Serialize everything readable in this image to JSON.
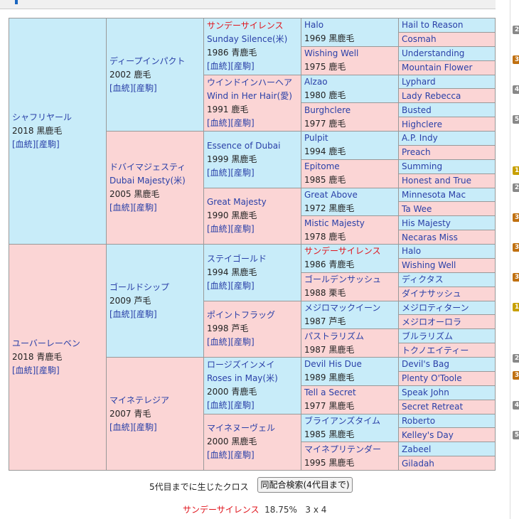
{
  "links": {
    "bloodline": "[血統]",
    "progeny": "[産駒]"
  },
  "horse": {
    "name": "シャフリヤール",
    "info": "2018 黒鹿毛"
  },
  "g1": [
    {
      "name": "シャフリヤール",
      "info": "2018 黒鹿毛"
    },
    {
      "name": "ユーバーレーベン",
      "info": "2018 青鹿毛"
    }
  ],
  "g2": [
    {
      "name": "ディープインパクト",
      "info": "2002 鹿毛"
    },
    {
      "name": "ドバイマジェスティ",
      "name2": "Dubai Majesty(米)",
      "info": "2005 黒鹿毛"
    },
    {
      "name": "ゴールドシップ",
      "info": "2009 芦毛"
    },
    {
      "name": "マイネテレジア",
      "info": "2007 青毛"
    }
  ],
  "g3": [
    {
      "name": "サンデーサイレンス",
      "name2": "Sunday Silence(米)",
      "info": "1986 青鹿毛"
    },
    {
      "name": "ウインドインハーヘア",
      "name2": "Wind in Her Hair(愛)",
      "info": "1991 鹿毛"
    },
    {
      "name": "Essence of Dubai",
      "info": "1999 黒鹿毛"
    },
    {
      "name": "Great Majesty",
      "info": "1990 黒鹿毛"
    },
    {
      "name": "ステイゴールド",
      "info": "1994 黒鹿毛"
    },
    {
      "name": "ポイントフラッグ",
      "info": "1998 芦毛"
    },
    {
      "name": "ロージズインメイ",
      "name2": "Roses in May(米)",
      "info": "2000 青鹿毛"
    },
    {
      "name": "マイネヌーヴェル",
      "info": "2000 黒鹿毛"
    }
  ],
  "g4": [
    {
      "name": "Halo",
      "info": "1969 黒鹿毛"
    },
    {
      "name": "Wishing Well",
      "info": "1975 鹿毛"
    },
    {
      "name": "Alzao",
      "info": "1980 鹿毛"
    },
    {
      "name": "Burghclere",
      "info": "1977 鹿毛"
    },
    {
      "name": "Pulpit",
      "info": "1994 鹿毛"
    },
    {
      "name": "Epitome",
      "info": "1985 鹿毛"
    },
    {
      "name": "Great Above",
      "info": "1972 黒鹿毛"
    },
    {
      "name": "Mistic Majesty",
      "info": "1978 鹿毛"
    },
    {
      "name": "サンデーサイレンス",
      "info": "1986 青鹿毛"
    },
    {
      "name": "ゴールデンサッシュ",
      "info": "1988 栗毛"
    },
    {
      "name": "メジロマックイーン",
      "info": "1987 芦毛"
    },
    {
      "name": "パストラリズム",
      "info": "1987 黒鹿毛"
    },
    {
      "name": "Devil His Due",
      "info": "1989 黒鹿毛"
    },
    {
      "name": "Tell a Secret",
      "info": "1977 黒鹿毛"
    },
    {
      "name": "ブライアンズタイム",
      "info": "1985 黒鹿毛"
    },
    {
      "name": "マイネプリテンダー",
      "info": "1995 黒鹿毛"
    }
  ],
  "g5": [
    "Hail to Reason",
    "Cosmah",
    "Understanding",
    "Mountain Flower",
    "Lyphard",
    "Lady Rebecca",
    "Busted",
    "Highclere",
    "A.P. Indy",
    "Preach",
    "Summing",
    "Honest and True",
    "Minnesota Mac",
    "Ta Wee",
    "His Majesty",
    "Necaras Miss",
    "Halo",
    "Wishing Well",
    "ディクタス",
    "ダイナサッシュ",
    "メジロティターン",
    "メジロオーロラ",
    "ブルラリズム",
    "トクノエイティー",
    "Devil's Bag",
    "Plenty O'Toole",
    "Speak John",
    "Secret Retreat",
    "Roberto",
    "Kelley's Day",
    "Zabeel",
    "Giladah"
  ],
  "footer": {
    "cross_label": "5代目までに生じたクロス",
    "button": "同配合検索(4代目まで)",
    "cross_name": "サンデーサイレンス",
    "cross_pct": "18.75%",
    "cross_gen": "3 x 4"
  },
  "sidebar": {
    "badges": [
      "2",
      "3",
      "4",
      "5",
      "1",
      "2",
      "3",
      "3",
      "3",
      "1",
      "2",
      "3",
      "4",
      "5"
    ]
  },
  "colors": {
    "male": "#c8ecf9",
    "female": "#fbd5d5",
    "link": "#2a40a8",
    "highlight": "#e0141c"
  }
}
